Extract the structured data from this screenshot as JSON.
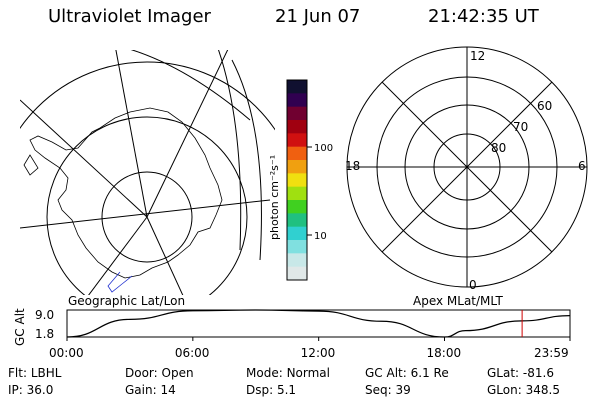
{
  "header": {
    "title": "Ultraviolet Imager",
    "date": "21 Jun 07",
    "time": "21:42:35 UT"
  },
  "colorbar": {
    "unit_label": "photon cm⁻²s⁻¹",
    "ticks": [
      "100",
      "10"
    ],
    "colors": [
      "#101030",
      "#300050",
      "#700030",
      "#a00010",
      "#d01010",
      "#f06010",
      "#f0a010",
      "#f0e010",
      "#a0e010",
      "#40d020",
      "#20c080",
      "#30d0d0",
      "#80e0e0",
      "#c8e8e8",
      "#e0e8e8"
    ]
  },
  "geo_map": {
    "label": "Geographic Lat/Lon"
  },
  "polar_plot": {
    "label": "Apex MLat/MLT",
    "mlt_labels": {
      "top": "12",
      "left": "18",
      "right": "6",
      "bottom": "0"
    },
    "lat_labels": [
      "60",
      "70",
      "80"
    ]
  },
  "altitude_plot": {
    "ylabel": "GC Alt",
    "yticks": [
      "9.0",
      "1.8"
    ],
    "xticks": [
      "00:00",
      "06:00",
      "12:00",
      "18:00",
      "23:59"
    ],
    "marker_color": "#d00000"
  },
  "chart_data": {
    "type": "line",
    "xlabel": "",
    "ylabel": "GC Alt",
    "ylim": [
      1.8,
      9.0
    ],
    "x": [
      "00:00",
      "03:00",
      "06:00",
      "09:00",
      "12:00",
      "15:00",
      "18:00",
      "19:00",
      "21:42",
      "23:59"
    ],
    "values": [
      1.8,
      6.5,
      8.8,
      9.0,
      8.7,
      6.0,
      1.8,
      3.5,
      6.1,
      7.5
    ],
    "current_time": "21:42",
    "current_value": 6.1
  },
  "status": {
    "row1": [
      {
        "label": "Flt:",
        "value": "LBHL"
      },
      {
        "label": "Door:",
        "value": "Open"
      },
      {
        "label": "Mode:",
        "value": "Normal"
      },
      {
        "label": "GC Alt:",
        "value": "6.1 Re"
      },
      {
        "label": "GLat:",
        "value": "-81.6"
      }
    ],
    "row2": [
      {
        "label": "IP:",
        "value": "36.0"
      },
      {
        "label": "Gain:",
        "value": "14"
      },
      {
        "label": "Dsp:",
        "value": "5.1"
      },
      {
        "label": "Seq:",
        "value": "39"
      },
      {
        "label": "GLon:",
        "value": "348.5"
      }
    ]
  }
}
